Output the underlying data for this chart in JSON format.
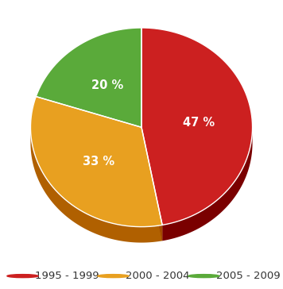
{
  "slices": [
    47,
    33,
    20
  ],
  "colors": [
    "#cc2020",
    "#e8a020",
    "#5aaa3a"
  ],
  "dark_colors": [
    "#7a0000",
    "#b06000",
    "#2a6a14"
  ],
  "labels": [
    "47 %",
    "33 %",
    "20 %"
  ],
  "legend_labels": [
    "1995 - 1999",
    "2000 - 2004",
    "2005 - 2009"
  ],
  "background_color": "#ffffff",
  "text_color": "#ffffff",
  "label_fontsize": 10.5,
  "legend_fontsize": 9.5
}
